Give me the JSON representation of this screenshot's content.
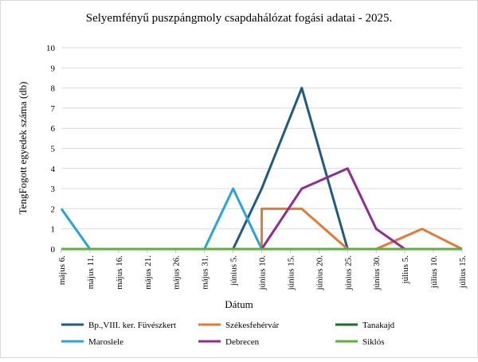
{
  "chart_data": {
    "type": "line",
    "title": "Selyemfényű puszpángmoly csapdahálózat fogási adatai - 2025.",
    "xlabel": "Dátum",
    "ylabel": "TengFogott egyedek száma (db)",
    "ylim": [
      0,
      10
    ],
    "yticks": [
      0,
      1,
      2,
      3,
      4,
      5,
      6,
      7,
      8,
      9,
      10
    ],
    "grid": true,
    "legend_position": "bottom",
    "x_tick_labels": [
      "május 6.",
      "május 11.",
      "május 16.",
      "május 21.",
      "május 26.",
      "május 31.",
      "június 5.",
      "június 10.",
      "június 15.",
      "június 20.",
      "június 25.",
      "június 30.",
      "július 5.",
      "július 10.",
      "július 15."
    ],
    "series": [
      {
        "name": "Bp.,VIII. ker. Füvészkert",
        "color": "#1f5c7e",
        "points": [
          [
            "június 5.",
            0
          ],
          [
            "június 10.",
            3
          ],
          [
            "június 17.",
            8
          ],
          [
            "június 25.",
            0
          ]
        ]
      },
      {
        "name": "Székesfehérvár",
        "color": "#e07b39",
        "points": [
          [
            "május 6.",
            0
          ],
          [
            "június 10.",
            0
          ],
          [
            "június 10.",
            2
          ],
          [
            "június 17.",
            2
          ],
          [
            "június 25.",
            0
          ],
          [
            "június 30.",
            0
          ],
          [
            "július 8.",
            1
          ],
          [
            "július 15.",
            0
          ]
        ]
      },
      {
        "name": "Tanakajd",
        "color": "#1d6b2a",
        "points": [
          [
            "május 6.",
            0
          ],
          [
            "július 15.",
            0
          ]
        ]
      },
      {
        "name": "Maroslele",
        "color": "#2aa3d6",
        "points": [
          [
            "május 6.",
            2
          ],
          [
            "május 11.",
            0
          ],
          [
            "május 31.",
            0
          ],
          [
            "június 5.",
            3
          ],
          [
            "június 10.",
            0
          ]
        ]
      },
      {
        "name": "Debrecen",
        "color": "#8e2e8f",
        "points": [
          [
            "június 10.",
            0
          ],
          [
            "június 17.",
            3
          ],
          [
            "június 25.",
            4
          ],
          [
            "június 30.",
            1
          ],
          [
            "július 5.",
            0
          ]
        ]
      },
      {
        "name": "Siklós",
        "color": "#5fae3f",
        "points": [
          [
            "május 6.",
            0
          ],
          [
            "július 15.",
            0
          ]
        ]
      }
    ]
  }
}
